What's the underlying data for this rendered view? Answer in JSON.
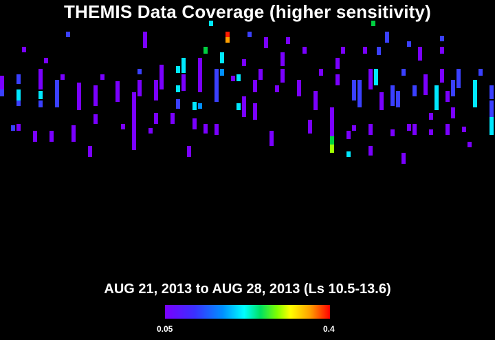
{
  "title": "THEMIS Data Coverage (higher sensitivity)",
  "subtitle": "AUG 21, 2013 to AUG 28, 2013 (Ls 10.5-13.6)",
  "colorbar": {
    "min_label": "0.05",
    "max_label": "0.4",
    "colors": [
      "#7a00ff",
      "#3a30ff",
      "#0090ff",
      "#00ffff",
      "#00e060",
      "#80ff00",
      "#ffff00",
      "#ffa000",
      "#ff0000"
    ]
  },
  "coverage_colors": {
    "violet": "#7a00ff",
    "blue": "#3a40ff",
    "azure": "#0090ff",
    "cyan": "#00e8ff",
    "green": "#00d040",
    "lime": "#a0ff00",
    "orange": "#ffa000",
    "red": "#ff1a00"
  }
}
